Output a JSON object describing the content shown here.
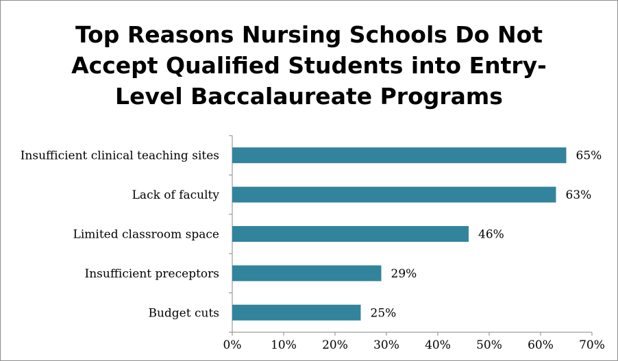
{
  "chart_data": {
    "type": "bar",
    "orientation": "horizontal",
    "title_lines": [
      "Top Reasons Nursing Schools Do Not",
      "Accept Qualified Students into Entry-",
      "Level Baccalaureate Programs"
    ],
    "categories": [
      "Insufficient clinical teaching sites",
      "Lack of faculty",
      "Limited classroom space",
      "Insufficient preceptors",
      "Budget cuts"
    ],
    "values": [
      65,
      63,
      46,
      29,
      25
    ],
    "value_labels": [
      "65%",
      "63%",
      "46%",
      "29%",
      "25%"
    ],
    "xlim": [
      0,
      70
    ],
    "x_ticks": [
      0,
      10,
      20,
      30,
      40,
      50,
      60,
      70
    ],
    "x_tick_labels": [
      "0%",
      "10%",
      "20%",
      "30%",
      "40%",
      "50%",
      "60%",
      "70%"
    ],
    "bar_color": "#31849b",
    "grid": false,
    "legend": "none"
  }
}
